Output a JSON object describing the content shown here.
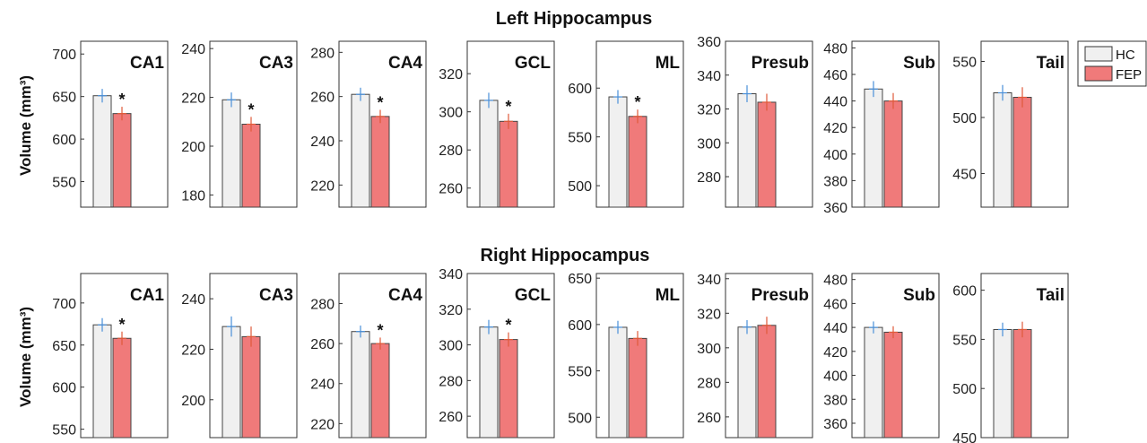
{
  "figure": {
    "row_titles": [
      "Left Hippocampus",
      "Right Hippocampus"
    ],
    "ylabel": "Volume (mm³)",
    "legend": {
      "placement": "top-right outside",
      "entries": [
        "HC",
        "FEP"
      ]
    },
    "colors": {
      "HC": "#f0f0f0",
      "FEP": "#f07a7a",
      "HC_err": "#4a90d9",
      "FEP_err": "#e05a3a",
      "axis": "#333333"
    }
  },
  "chart_data": [
    {
      "type": "bar",
      "row": "Left Hippocampus",
      "title": "CA1",
      "categories": [
        "HC",
        "FEP"
      ],
      "values": [
        651,
        630
      ],
      "errors": [
        8,
        8
      ],
      "significant": true,
      "ylim": [
        520,
        715
      ],
      "yticks": [
        550,
        600,
        650,
        700
      ]
    },
    {
      "type": "bar",
      "row": "Left Hippocampus",
      "title": "CA3",
      "categories": [
        "HC",
        "FEP"
      ],
      "values": [
        219,
        209
      ],
      "errors": [
        3,
        3
      ],
      "significant": true,
      "ylim": [
        175,
        243
      ],
      "yticks": [
        180,
        200,
        220,
        240
      ]
    },
    {
      "type": "bar",
      "row": "Left Hippocampus",
      "title": "CA4",
      "categories": [
        "HC",
        "FEP"
      ],
      "values": [
        261,
        251
      ],
      "errors": [
        3,
        3
      ],
      "significant": true,
      "ylim": [
        210,
        285
      ],
      "yticks": [
        220,
        240,
        260,
        280
      ]
    },
    {
      "type": "bar",
      "row": "Left Hippocampus",
      "title": "GCL",
      "categories": [
        "HC",
        "FEP"
      ],
      "values": [
        306,
        295
      ],
      "errors": [
        4,
        4
      ],
      "significant": true,
      "ylim": [
        250,
        337
      ],
      "yticks": [
        260,
        280,
        300,
        320
      ]
    },
    {
      "type": "bar",
      "row": "Left Hippocampus",
      "title": "ML",
      "categories": [
        "HC",
        "FEP"
      ],
      "values": [
        591,
        571
      ],
      "errors": [
        7,
        7
      ],
      "significant": true,
      "ylim": [
        478,
        648
      ],
      "yticks": [
        500,
        550,
        600
      ]
    },
    {
      "type": "bar",
      "row": "Left Hippocampus",
      "title": "Presub",
      "categories": [
        "HC",
        "FEP"
      ],
      "values": [
        329,
        324
      ],
      "errors": [
        5,
        5
      ],
      "significant": false,
      "ylim": [
        262,
        360
      ],
      "yticks": [
        280,
        300,
        320,
        340,
        360
      ]
    },
    {
      "type": "bar",
      "row": "Left Hippocampus",
      "title": "Sub",
      "categories": [
        "HC",
        "FEP"
      ],
      "values": [
        449,
        440
      ],
      "errors": [
        6,
        6
      ],
      "significant": false,
      "ylim": [
        360,
        485
      ],
      "yticks": [
        360,
        380,
        400,
        420,
        440,
        460,
        480
      ]
    },
    {
      "type": "bar",
      "row": "Left Hippocampus",
      "title": "Tail",
      "categories": [
        "HC",
        "FEP"
      ],
      "values": [
        522,
        518
      ],
      "errors": [
        7,
        9
      ],
      "significant": false,
      "ylim": [
        420,
        568
      ],
      "yticks": [
        450,
        500,
        550
      ]
    },
    {
      "type": "bar",
      "row": "Right Hippocampus",
      "title": "CA1",
      "categories": [
        "HC",
        "FEP"
      ],
      "values": [
        674,
        658
      ],
      "errors": [
        8,
        8
      ],
      "significant": true,
      "ylim": [
        540,
        735
      ],
      "yticks": [
        550,
        600,
        650,
        700
      ]
    },
    {
      "type": "bar",
      "row": "Right Hippocampus",
      "title": "CA3",
      "categories": [
        "HC",
        "FEP"
      ],
      "values": [
        229,
        225
      ],
      "errors": [
        4,
        4
      ],
      "significant": false,
      "ylim": [
        185,
        250
      ],
      "yticks": [
        200,
        220,
        240
      ]
    },
    {
      "type": "bar",
      "row": "Right Hippocampus",
      "title": "CA4",
      "categories": [
        "HC",
        "FEP"
      ],
      "values": [
        266,
        260
      ],
      "errors": [
        3,
        3
      ],
      "significant": true,
      "ylim": [
        213,
        295
      ],
      "yticks": [
        220,
        240,
        260,
        280
      ]
    },
    {
      "type": "bar",
      "row": "Right Hippocampus",
      "title": "GCL",
      "categories": [
        "HC",
        "FEP"
      ],
      "values": [
        310,
        303
      ],
      "errors": [
        4,
        4
      ],
      "significant": true,
      "ylim": [
        248,
        340
      ],
      "yticks": [
        260,
        280,
        300,
        320,
        340
      ]
    },
    {
      "type": "bar",
      "row": "Right Hippocampus",
      "title": "ML",
      "categories": [
        "HC",
        "FEP"
      ],
      "values": [
        597,
        585
      ],
      "errors": [
        7,
        8
      ],
      "significant": false,
      "ylim": [
        478,
        655
      ],
      "yticks": [
        500,
        550,
        600,
        650
      ]
    },
    {
      "type": "bar",
      "row": "Right Hippocampus",
      "title": "Presub",
      "categories": [
        "HC",
        "FEP"
      ],
      "values": [
        312,
        313
      ],
      "errors": [
        4,
        5
      ],
      "significant": false,
      "ylim": [
        248,
        343
      ],
      "yticks": [
        260,
        280,
        300,
        320,
        340
      ]
    },
    {
      "type": "bar",
      "row": "Right Hippocampus",
      "title": "Sub",
      "categories": [
        "HC",
        "FEP"
      ],
      "values": [
        440,
        436
      ],
      "errors": [
        5,
        5
      ],
      "significant": false,
      "ylim": [
        348,
        485
      ],
      "yticks": [
        360,
        380,
        400,
        420,
        440,
        460,
        480
      ]
    },
    {
      "type": "bar",
      "row": "Right Hippocampus",
      "title": "Tail",
      "categories": [
        "HC",
        "FEP"
      ],
      "values": [
        560,
        560
      ],
      "errors": [
        7,
        8
      ],
      "significant": false,
      "ylim": [
        450,
        617
      ],
      "yticks": [
        450,
        500,
        550,
        600
      ]
    }
  ]
}
